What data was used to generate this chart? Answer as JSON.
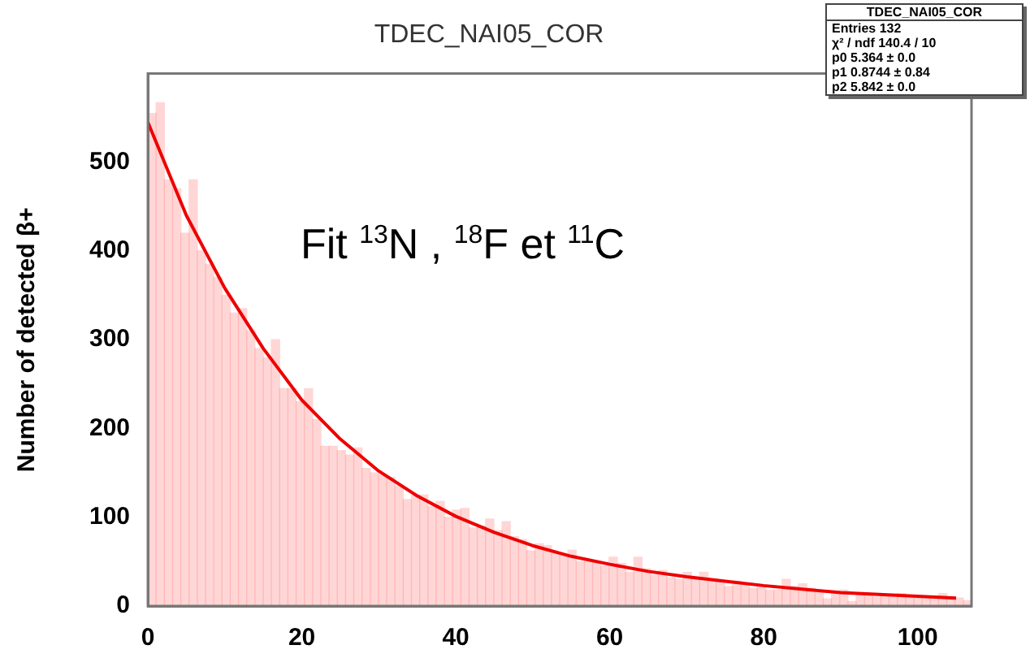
{
  "chart_data": {
    "type": "histogram",
    "title": "TDEC_NAI05_COR",
    "ylabel": "Number of detected β+",
    "annotations": [
      "Fit $^{13}$N , $^{18}$F et $^{11}$C",
      "TDEC_NAI05_COR",
      "Entries 132",
      "χ² / ndf 140.4 / 10",
      "p0 5.364 ± 0.0",
      "p1 0.8744 ± 0.84",
      "p2 5.842 ± 0.0"
    ],
    "xlim": [
      0,
      107
    ],
    "xticks": [
      0,
      20,
      40,
      60,
      80,
      100
    ],
    "ylim": [
      0,
      600
    ],
    "yticks": [
      0,
      100,
      200,
      300,
      400,
      500
    ],
    "grid": false,
    "legend": false,
    "color": "#ff5a5a",
    "bins": [
      0,
      1.07,
      2.14,
      3.21,
      4.28,
      5.35,
      6.42,
      7.49,
      8.56,
      9.63,
      10.7,
      11.77,
      12.84,
      13.91,
      14.98,
      16.05,
      17.12,
      18.19,
      19.26,
      20.33,
      21.4,
      22.47,
      23.54,
      24.61,
      25.68,
      26.75,
      27.82,
      28.89,
      29.96,
      31.03,
      32.1,
      33.17,
      34.24,
      35.31,
      36.38,
      37.45,
      38.52,
      39.59,
      40.66,
      41.73,
      42.8,
      43.87,
      44.94,
      46.01,
      47.08,
      48.15,
      49.22,
      50.29,
      51.36,
      52.43,
      53.5,
      54.57,
      55.64,
      56.71,
      57.78,
      58.85,
      59.92,
      60.99,
      62.06,
      63.13,
      64.2,
      65.27,
      66.34,
      67.41,
      68.48,
      69.55,
      70.62,
      71.69,
      72.76,
      73.83,
      74.9,
      75.97,
      77.04,
      78.11,
      79.18,
      80.25,
      81.32,
      82.39,
      83.46,
      84.53,
      85.6,
      86.67,
      87.74,
      88.81,
      89.88,
      90.95,
      92.02,
      93.09,
      94.16,
      95.23,
      96.3,
      97.37,
      98.44,
      99.51,
      100.58,
      101.65,
      102.72,
      103.79,
      104.86,
      105.93,
      107
    ],
    "values": [
      555,
      567,
      480,
      470,
      420,
      480,
      400,
      385,
      370,
      350,
      330,
      335,
      310,
      290,
      280,
      300,
      245,
      245,
      230,
      245,
      210,
      180,
      180,
      175,
      170,
      178,
      155,
      150,
      148,
      145,
      135,
      120,
      125,
      125,
      112,
      118,
      100,
      108,
      110,
      88,
      90,
      98,
      85,
      95,
      78,
      75,
      62,
      70,
      68,
      60,
      57,
      63,
      50,
      52,
      50,
      45,
      55,
      48,
      38,
      55,
      42,
      35,
      40,
      32,
      30,
      38,
      32,
      38,
      30,
      28,
      22,
      28,
      25,
      20,
      22,
      18,
      18,
      30,
      22,
      25,
      20,
      15,
      8,
      15,
      18,
      5,
      14,
      12,
      10,
      12,
      10,
      14,
      12,
      10,
      9,
      8,
      14,
      8,
      9,
      6
    ],
    "series": [
      {
        "type": "line",
        "color": "#ee0000",
        "x": [
          0,
          5,
          10,
          15,
          20,
          25,
          30,
          35,
          40,
          45,
          50,
          55,
          60,
          65,
          70,
          75,
          80,
          85,
          90,
          95,
          100,
          105
        ],
        "values": [
          545,
          440,
          358,
          290,
          232,
          188,
          152,
          124,
          101,
          83,
          68,
          56,
          47,
          39,
          33,
          28,
          23,
          19,
          15,
          13,
          11,
          9
        ]
      }
    ]
  }
}
